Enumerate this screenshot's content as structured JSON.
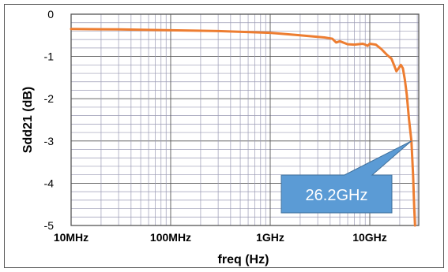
{
  "chart_data": {
    "type": "line",
    "xlabel": "freq (Hz)",
    "ylabel": "Sdd21 (dB)",
    "x_scale": "log",
    "xlim": [
      "10MHz",
      "50GHz"
    ],
    "ylim": [
      -5,
      0
    ],
    "yticks": [
      0,
      -1,
      -2,
      -3,
      -4,
      -5
    ],
    "xticks": [
      {
        "label": "10MHz",
        "value_hz": 10000000
      },
      {
        "label": "100MHz",
        "value_hz": 100000000
      },
      {
        "label": "1GHz",
        "value_hz": 1000000000
      },
      {
        "label": "10GHz",
        "value_hz": 10000000000
      }
    ],
    "grid": true,
    "series": [
      {
        "color": "#ed7d31",
        "points": [
          {
            "x_hz": 10000000,
            "y_db": -0.35
          },
          {
            "x_hz": 30000000,
            "y_db": -0.36
          },
          {
            "x_hz": 100000000,
            "y_db": -0.38
          },
          {
            "x_hz": 300000000,
            "y_db": -0.4
          },
          {
            "x_hz": 1000000000,
            "y_db": -0.44
          },
          {
            "x_hz": 2000000000,
            "y_db": -0.5
          },
          {
            "x_hz": 3500000000,
            "y_db": -0.55
          },
          {
            "x_hz": 4200000000,
            "y_db": -0.58
          },
          {
            "x_hz": 4600000000,
            "y_db": -0.67
          },
          {
            "x_hz": 5000000000,
            "y_db": -0.64
          },
          {
            "x_hz": 6000000000,
            "y_db": -0.71
          },
          {
            "x_hz": 7000000000,
            "y_db": -0.72
          },
          {
            "x_hz": 8500000000,
            "y_db": -0.7
          },
          {
            "x_hz": 9000000000,
            "y_db": -0.72
          },
          {
            "x_hz": 9500000000,
            "y_db": -0.75
          },
          {
            "x_hz": 10000000000,
            "y_db": -0.7
          },
          {
            "x_hz": 11500000000,
            "y_db": -0.72
          },
          {
            "x_hz": 13000000000,
            "y_db": -0.82
          },
          {
            "x_hz": 15000000000,
            "y_db": -0.97
          },
          {
            "x_hz": 16500000000,
            "y_db": -1.05
          },
          {
            "x_hz": 17500000000,
            "y_db": -1.2
          },
          {
            "x_hz": 18500000000,
            "y_db": -1.35
          },
          {
            "x_hz": 19500000000,
            "y_db": -1.28
          },
          {
            "x_hz": 20500000000,
            "y_db": -1.2
          },
          {
            "x_hz": 21500000000,
            "y_db": -1.28
          },
          {
            "x_hz": 22500000000,
            "y_db": -1.55
          },
          {
            "x_hz": 23500000000,
            "y_db": -1.9
          },
          {
            "x_hz": 24800000000,
            "y_db": -2.5
          },
          {
            "x_hz": 26200000000,
            "y_db": -3.0
          },
          {
            "x_hz": 27200000000,
            "y_db": -3.8
          },
          {
            "x_hz": 28000000000,
            "y_db": -4.6
          },
          {
            "x_hz": 28500000000,
            "y_db": -5.0
          }
        ]
      }
    ],
    "annotations": [
      {
        "text": "26.2GHz",
        "x_hz": 26200000000,
        "y_db": -3.0
      }
    ]
  }
}
